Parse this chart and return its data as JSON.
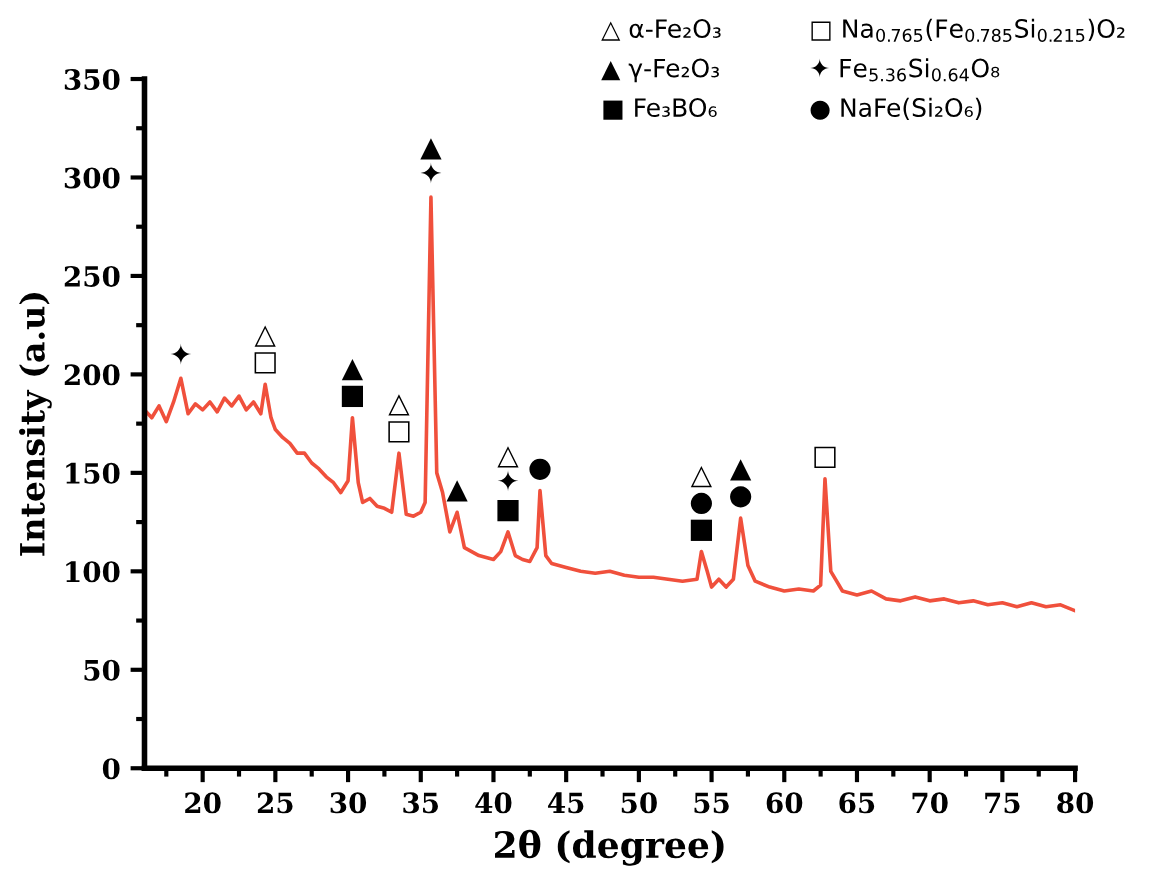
{
  "chart_data": {
    "type": "line",
    "xlabel": "2θ (degree)",
    "ylabel": "Intensity (a.u)",
    "xlim": [
      16,
      80
    ],
    "ylim": [
      0,
      350
    ],
    "xticks": [
      20,
      25,
      30,
      35,
      40,
      45,
      50,
      55,
      60,
      65,
      70,
      75,
      80
    ],
    "yticks": [
      0,
      50,
      100,
      150,
      200,
      250,
      300,
      350
    ],
    "grid": false,
    "series": [
      {
        "color": "#f0503c",
        "x": [
          16,
          16.5,
          17,
          17.5,
          18,
          18.5,
          19,
          19.5,
          20,
          20.5,
          21,
          21.5,
          22,
          22.5,
          23,
          23.5,
          24,
          24.3,
          24.7,
          25,
          25.5,
          26,
          26.5,
          27,
          27.5,
          28,
          28.5,
          29,
          29.5,
          30,
          30.3,
          30.7,
          31,
          31.5,
          32,
          32.5,
          33,
          33.5,
          34,
          34.5,
          35,
          35.3,
          35.7,
          36.1,
          36.5,
          37,
          37.5,
          38,
          39,
          40,
          40.5,
          41,
          41.5,
          42,
          42.5,
          43,
          43.2,
          43.6,
          44,
          45,
          46,
          47,
          48,
          49,
          50,
          51,
          52,
          53,
          54,
          54.3,
          54.7,
          55,
          55.5,
          56,
          56.5,
          57,
          57.5,
          58,
          59,
          60,
          61,
          62,
          62.5,
          62.8,
          63.2,
          63.6,
          64,
          65,
          66,
          67,
          68,
          69,
          70,
          71,
          72,
          73,
          74,
          75,
          76,
          77,
          78,
          79,
          80
        ],
        "values": [
          182,
          178,
          184,
          176,
          186,
          198,
          180,
          185,
          182,
          186,
          181,
          188,
          184,
          189,
          182,
          186,
          180,
          195,
          178,
          172,
          168,
          165,
          160,
          160,
          155,
          152,
          148,
          145,
          140,
          146,
          178,
          145,
          135,
          137,
          133,
          132,
          130,
          160,
          129,
          128,
          130,
          135,
          290,
          150,
          140,
          120,
          130,
          112,
          108,
          106,
          110,
          120,
          108,
          106,
          105,
          112,
          141,
          108,
          104,
          102,
          100,
          99,
          100,
          98,
          97,
          97,
          96,
          95,
          96,
          110,
          100,
          92,
          96,
          92,
          96,
          127,
          103,
          95,
          92,
          90,
          91,
          90,
          93,
          147,
          100,
          95,
          90,
          88,
          90,
          86,
          85,
          87,
          85,
          86,
          84,
          85,
          83,
          84,
          82,
          84,
          82,
          83,
          80
        ]
      }
    ],
    "annotations": [
      "△ α-Fe₂O₃",
      "▲ γ-Fe₂O₃",
      "■ Fe₃BO₆",
      "□ Na$_{0.765}$(Fe$_{0.785}$Si$_{0.215}$)O₂",
      "✦ Fe$_{5.36}$Si$_{0.64}$O₈",
      "● NaFe(Si₂O₆)",
      {
        "text": "✦",
        "x": 18.5,
        "y": 198
      },
      {
        "text": "△\n□",
        "x": 24.3,
        "y": 195
      },
      {
        "text": "▲\n■",
        "x": 30.3,
        "y": 178
      },
      {
        "text": "△\n□",
        "x": 33.5,
        "y": 160
      },
      {
        "text": "▲\n✦",
        "x": 35.7,
        "y": 290
      },
      {
        "text": "▲",
        "x": 37.5,
        "y": 130
      },
      {
        "text": "△\n✦\n■",
        "x": 41,
        "y": 120
      },
      {
        "text": "●",
        "x": 43.2,
        "y": 141
      },
      {
        "text": "△\n●\n■",
        "x": 54.3,
        "y": 110
      },
      {
        "text": "▲\n●",
        "x": 57,
        "y": 127
      },
      {
        "text": "□",
        "x": 62.8,
        "y": 147
      }
    ]
  }
}
